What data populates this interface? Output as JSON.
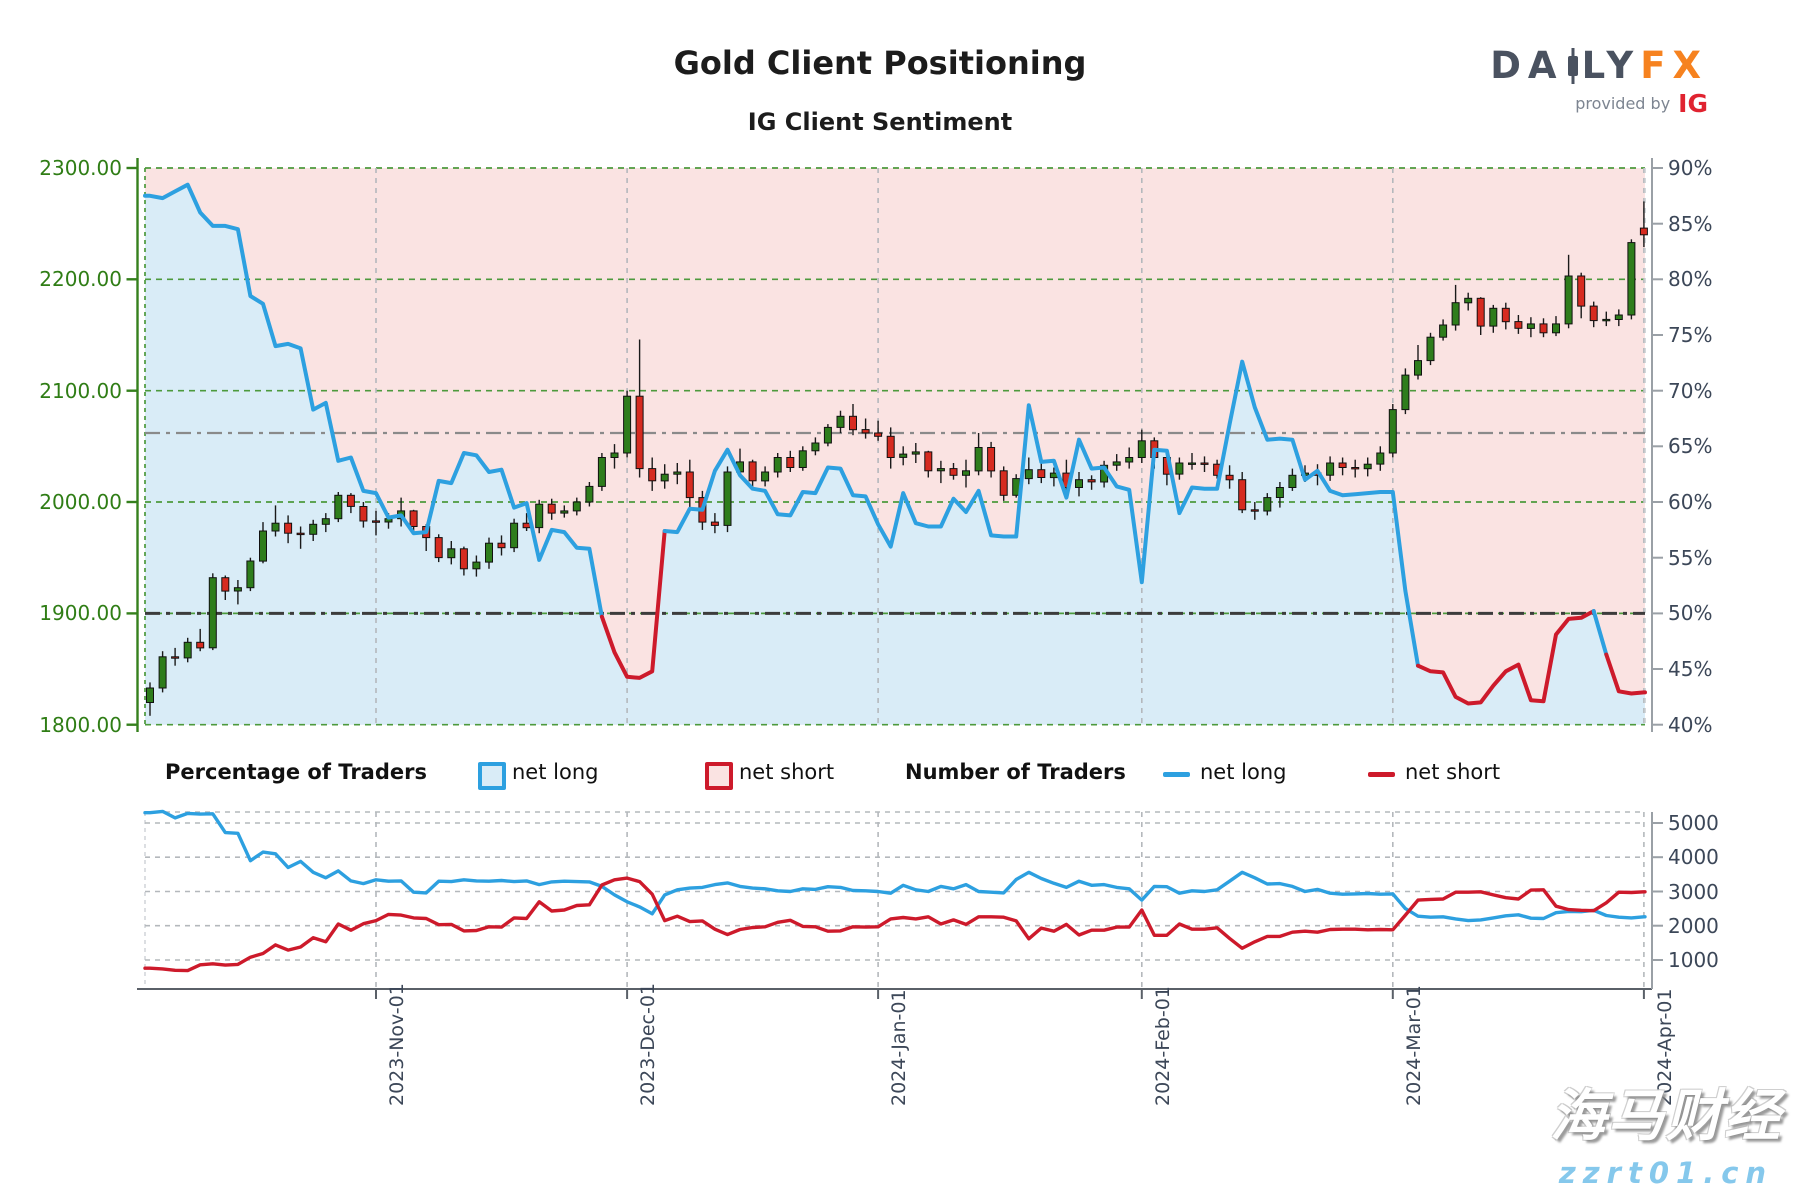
{
  "header": {
    "title": "Gold Client Positioning",
    "subtitle": "IG Client Sentiment",
    "logo": {
      "part1": "DA",
      "part2": "LY",
      "part3": "FX",
      "provided": "provided by",
      "ig": "IG"
    }
  },
  "legend": {
    "pct_title": "Percentage of Traders",
    "pct_long": "net long",
    "pct_short": "net short",
    "num_title": "Number of Traders",
    "num_long": "net long",
    "num_short": "net short"
  },
  "watermark": {
    "line1": "海马财经",
    "line2": "zzrt01.cn"
  },
  "colors": {
    "blue": "#2da0e0",
    "red": "#cd1a2b",
    "fill_blue": "#d9ecf7",
    "fill_pink": "#fae3e2",
    "candle_up": "#2e7d1c",
    "candle_down": "#d62b20",
    "wick": "#1a1a1a",
    "green_axis": "#35801d",
    "grid_green": "#4d9a3d",
    "slate": "#3c4758",
    "grid_gray": "#b4b8bc",
    "ref_gray": "#8a8a8a",
    "ref_dark": "#3c3c3c",
    "axis_gray": "#9aa0a6"
  },
  "chart_data": [
    {
      "type": "candlestick+line",
      "title": "Gold price candles with % of traders net long",
      "price_axis": {
        "labels": [
          "2300.00",
          "2200.00",
          "2100.00",
          "2000.00",
          "1900.00",
          "1800.00"
        ],
        "values": [
          2300,
          2200,
          2100,
          2000,
          1900,
          1800
        ],
        "range": [
          1800,
          2300
        ]
      },
      "pct_axis": {
        "labels": [
          "90%",
          "85%",
          "80%",
          "75%",
          "70%",
          "65%",
          "60%",
          "55%",
          "50%",
          "45%",
          "40%"
        ],
        "values": [
          90,
          85,
          80,
          75,
          70,
          65,
          60,
          55,
          50,
          45,
          40
        ],
        "range": [
          40,
          90
        ]
      },
      "reference_lines": [
        {
          "value": 66.2,
          "style": "gray-dashdot"
        },
        {
          "value": 50,
          "style": "dark-dashdot"
        }
      ],
      "months": [
        {
          "label": "2023-Nov-01",
          "bar": 18
        },
        {
          "label": "2023-Dec-01",
          "bar": 38
        },
        {
          "label": "2024-Jan-01",
          "bar": 58
        },
        {
          "label": "2024-Feb-01",
          "bar": 79
        },
        {
          "label": "2024-Mar-01",
          "bar": 99
        },
        {
          "label": "2024-Apr-01",
          "bar": 119
        }
      ],
      "bars": [
        [
          1820,
          1838,
          1808,
          1833
        ],
        [
          1833,
          1866,
          1829,
          1861
        ],
        [
          1861,
          1869,
          1853,
          1860
        ],
        [
          1860,
          1878,
          1856,
          1874
        ],
        [
          1874,
          1886,
          1866,
          1869
        ],
        [
          1869,
          1936,
          1867,
          1932
        ],
        [
          1932,
          1934,
          1912,
          1920
        ],
        [
          1920,
          1930,
          1908,
          1923
        ],
        [
          1923,
          1950,
          1920,
          1947
        ],
        [
          1947,
          1982,
          1945,
          1974
        ],
        [
          1974,
          1997,
          1969,
          1981
        ],
        [
          1981,
          1988,
          1963,
          1972
        ],
        [
          1972,
          1978,
          1958,
          1971
        ],
        [
          1971,
          1984,
          1965,
          1980
        ],
        [
          1980,
          1990,
          1973,
          1985
        ],
        [
          1985,
          2009,
          1982,
          2006
        ],
        [
          2006,
          2008,
          1990,
          1996
        ],
        [
          1996,
          2000,
          1977,
          1983
        ],
        [
          1983,
          1992,
          1970,
          1982
        ],
        [
          1982,
          1990,
          1976,
          1985
        ],
        [
          1985,
          2004,
          1978,
          1992
        ],
        [
          1992,
          1993,
          1974,
          1978
        ],
        [
          1978,
          1980,
          1956,
          1968
        ],
        [
          1968,
          1971,
          1946,
          1950
        ],
        [
          1950,
          1965,
          1944,
          1958
        ],
        [
          1958,
          1960,
          1934,
          1940
        ],
        [
          1940,
          1952,
          1933,
          1946
        ],
        [
          1946,
          1968,
          1940,
          1963
        ],
        [
          1963,
          1970,
          1952,
          1959
        ],
        [
          1959,
          1985,
          1955,
          1981
        ],
        [
          1981,
          1990,
          1974,
          1977
        ],
        [
          1977,
          2002,
          1972,
          1998
        ],
        [
          1998,
          2003,
          1984,
          1990
        ],
        [
          1990,
          1997,
          1986,
          1992
        ],
        [
          1992,
          2004,
          1988,
          2000
        ],
        [
          2000,
          2018,
          1996,
          2014
        ],
        [
          2014,
          2044,
          2010,
          2040
        ],
        [
          2040,
          2052,
          2030,
          2044
        ],
        [
          2044,
          2100,
          2040,
          2095
        ],
        [
          2095,
          2146,
          2022,
          2030
        ],
        [
          2030,
          2040,
          2010,
          2019
        ],
        [
          2019,
          2034,
          2012,
          2025
        ],
        [
          2025,
          2035,
          2016,
          2027
        ],
        [
          2027,
          2038,
          1995,
          2004
        ],
        [
          2004,
          2010,
          1975,
          1982
        ],
        [
          1982,
          1990,
          1972,
          1979
        ],
        [
          1979,
          2032,
          1973,
          2027
        ],
        [
          2027,
          2048,
          2023,
          2036
        ],
        [
          2036,
          2038,
          2013,
          2019
        ],
        [
          2019,
          2032,
          2014,
          2027
        ],
        [
          2027,
          2044,
          2022,
          2040
        ],
        [
          2040,
          2046,
          2027,
          2031
        ],
        [
          2031,
          2050,
          2028,
          2046
        ],
        [
          2046,
          2058,
          2042,
          2053
        ],
        [
          2053,
          2070,
          2050,
          2067
        ],
        [
          2067,
          2082,
          2062,
          2077
        ],
        [
          2077,
          2088,
          2060,
          2065
        ],
        [
          2065,
          2075,
          2057,
          2062
        ],
        [
          2062,
          2073,
          2055,
          2059
        ],
        [
          2059,
          2067,
          2030,
          2040
        ],
        [
          2040,
          2050,
          2033,
          2043
        ],
        [
          2043,
          2053,
          2035,
          2045
        ],
        [
          2045,
          2046,
          2022,
          2028
        ],
        [
          2028,
          2037,
          2017,
          2030
        ],
        [
          2030,
          2035,
          2020,
          2024
        ],
        [
          2024,
          2038,
          2013,
          2028
        ],
        [
          2028,
          2062,
          2024,
          2049
        ],
        [
          2049,
          2054,
          2022,
          2028
        ],
        [
          2028,
          2032,
          2001,
          2006
        ],
        [
          2006,
          2025,
          2004,
          2021
        ],
        [
          2021,
          2040,
          2016,
          2029
        ],
        [
          2029,
          2036,
          2017,
          2022
        ],
        [
          2022,
          2031,
          2014,
          2026
        ],
        [
          2026,
          2038,
          2008,
          2013
        ],
        [
          2013,
          2027,
          2005,
          2020
        ],
        [
          2020,
          2024,
          2011,
          2018
        ],
        [
          2018,
          2037,
          2013,
          2033
        ],
        [
          2033,
          2043,
          2028,
          2036
        ],
        [
          2036,
          2049,
          2030,
          2040
        ],
        [
          2040,
          2065,
          2035,
          2055
        ],
        [
          2055,
          2058,
          2030,
          2040
        ],
        [
          2040,
          2042,
          2015,
          2025
        ],
        [
          2025,
          2040,
          2020,
          2035
        ],
        [
          2035,
          2044,
          2029,
          2035
        ],
        [
          2035,
          2041,
          2027,
          2034
        ],
        [
          2034,
          2038,
          2021,
          2024
        ],
        [
          2024,
          2033,
          2012,
          2020
        ],
        [
          2020,
          2027,
          1990,
          1993
        ],
        [
          1993,
          2000,
          1984,
          1992
        ],
        [
          1992,
          2008,
          1988,
          2004
        ],
        [
          2004,
          2018,
          1995,
          2013
        ],
        [
          2013,
          2030,
          2010,
          2024
        ],
        [
          2024,
          2033,
          2018,
          2026
        ],
        [
          2026,
          2034,
          2015,
          2024
        ],
        [
          2024,
          2041,
          2019,
          2035
        ],
        [
          2035,
          2040,
          2024,
          2031
        ],
        [
          2031,
          2038,
          2022,
          2030
        ],
        [
          2030,
          2040,
          2023,
          2034
        ],
        [
          2034,
          2050,
          2028,
          2044
        ],
        [
          2044,
          2088,
          2040,
          2083
        ],
        [
          2083,
          2120,
          2079,
          2114
        ],
        [
          2114,
          2141,
          2110,
          2127
        ],
        [
          2127,
          2152,
          2123,
          2148
        ],
        [
          2148,
          2164,
          2145,
          2159
        ],
        [
          2159,
          2195,
          2154,
          2179
        ],
        [
          2179,
          2188,
          2172,
          2183
        ],
        [
          2183,
          2184,
          2150,
          2158
        ],
        [
          2158,
          2177,
          2152,
          2174
        ],
        [
          2174,
          2179,
          2155,
          2162
        ],
        [
          2162,
          2168,
          2151,
          2156
        ],
        [
          2156,
          2166,
          2148,
          2160
        ],
        [
          2160,
          2165,
          2148,
          2152
        ],
        [
          2152,
          2167,
          2149,
          2160
        ],
        [
          2160,
          2222,
          2156,
          2203
        ],
        [
          2203,
          2206,
          2165,
          2176
        ],
        [
          2176,
          2180,
          2157,
          2163
        ],
        [
          2163,
          2171,
          2158,
          2164
        ],
        [
          2164,
          2173,
          2158,
          2168
        ],
        [
          2168,
          2236,
          2164,
          2233
        ],
        [
          2246,
          2270,
          2229,
          2240
        ]
      ],
      "pct_net_long": [
        87.5,
        87.3,
        87.9,
        88.5,
        86.0,
        84.8,
        84.8,
        84.5,
        78.5,
        77.8,
        74.0,
        74.2,
        73.8,
        68.3,
        68.9,
        63.7,
        64.0,
        61.0,
        60.8,
        58.6,
        58.8,
        57.2,
        57.3,
        61.9,
        61.7,
        64.4,
        64.2,
        62.7,
        62.9,
        59.5,
        59.9,
        54.8,
        57.5,
        57.3,
        55.9,
        55.8,
        49.7,
        46.5,
        44.3,
        44.2,
        44.8,
        57.4,
        57.3,
        59.4,
        59.3,
        62.8,
        64.7,
        62.4,
        61.2,
        61.0,
        58.9,
        58.8,
        60.9,
        60.8,
        63.1,
        63.0,
        60.6,
        60.5,
        58.0,
        56.0,
        60.8,
        58.1,
        57.8,
        57.8,
        60.3,
        59.1,
        61.0,
        57.0,
        56.9,
        56.9,
        68.7,
        63.6,
        63.7,
        60.4,
        65.6,
        63.0,
        63.1,
        61.4,
        61.1,
        52.8,
        64.7,
        64.6,
        59.0,
        61.3,
        61.2,
        61.2,
        67.0,
        72.6,
        68.5,
        65.6,
        65.7,
        65.6,
        62.0,
        62.8,
        61.0,
        60.6,
        60.7,
        60.8,
        60.9,
        60.9,
        52.0,
        45.3,
        44.8,
        44.7,
        42.5,
        41.9,
        42.0,
        43.5,
        44.8,
        45.4,
        42.2,
        42.1,
        48.1,
        49.5,
        49.6,
        50.2,
        46.3,
        43.0,
        42.8,
        42.9
      ]
    },
    {
      "type": "line",
      "title": "Number of traders",
      "num_axis": {
        "labels": [
          "5000",
          "4000",
          "3000",
          "2000",
          "1000"
        ],
        "values": [
          5000,
          4000,
          3000,
          2000,
          1000
        ]
      },
      "series": [
        {
          "name": "net long",
          "color_key": "blue",
          "values": [
            5300,
            5340,
            5150,
            5280,
            5260,
            5270,
            4720,
            4700,
            3900,
            4150,
            4100,
            3700,
            3880,
            3560,
            3400,
            3600,
            3310,
            3230,
            3340,
            3300,
            3310,
            2980,
            2960,
            3300,
            3290,
            3340,
            3310,
            3300,
            3320,
            3290,
            3310,
            3200,
            3280,
            3300,
            3290,
            3280,
            3150,
            2900,
            2700,
            2550,
            2350,
            2900,
            3050,
            3100,
            3120,
            3200,
            3250,
            3150,
            3100,
            3080,
            3020,
            3000,
            3080,
            3060,
            3140,
            3120,
            3030,
            3020,
            3000,
            2950,
            3180,
            3050,
            3000,
            3150,
            3080,
            3200,
            3000,
            2980,
            2960,
            3350,
            3560,
            3380,
            3240,
            3120,
            3300,
            3180,
            3200,
            3120,
            3080,
            2750,
            3150,
            3140,
            2950,
            3020,
            3000,
            3050,
            3300,
            3560,
            3400,
            3220,
            3230,
            3150,
            3000,
            3060,
            2950,
            2920,
            2930,
            2940,
            2920,
            2930,
            2500,
            2280,
            2250,
            2260,
            2200,
            2150,
            2170,
            2230,
            2290,
            2320,
            2220,
            2210,
            2380,
            2420,
            2410,
            2450,
            2300,
            2250,
            2230,
            2260
          ]
        },
        {
          "name": "net short",
          "color_key": "red",
          "values": [
            760,
            740,
            700,
            690,
            860,
            890,
            850,
            870,
            1080,
            1190,
            1440,
            1290,
            1380,
            1650,
            1530,
            2050,
            1870,
            2060,
            2150,
            2330,
            2310,
            2230,
            2210,
            2030,
            2040,
            1850,
            1860,
            1970,
            1960,
            2230,
            2210,
            2700,
            2430,
            2460,
            2590,
            2610,
            3190,
            3340,
            3390,
            3290,
            2920,
            2150,
            2280,
            2120,
            2140,
            1900,
            1740,
            1890,
            1950,
            1970,
            2100,
            2160,
            1980,
            1970,
            1840,
            1850,
            1970,
            1960,
            1970,
            2200,
            2240,
            2200,
            2260,
            2050,
            2170,
            2040,
            2260,
            2260,
            2250,
            2140,
            1620,
            1930,
            1840,
            2040,
            1730,
            1870,
            1870,
            1960,
            1960,
            2460,
            1720,
            1720,
            2050,
            1900,
            1900,
            1940,
            1630,
            1340,
            1530,
            1690,
            1690,
            1810,
            1840,
            1810,
            1890,
            1900,
            1900,
            1880,
            1890,
            1880,
            2310,
            2750,
            2770,
            2780,
            2980,
            2980,
            2990,
            2900,
            2820,
            2780,
            3040,
            3050,
            2570,
            2470,
            2450,
            2440,
            2670,
            2980,
            2970,
            2990
          ]
        }
      ]
    }
  ]
}
